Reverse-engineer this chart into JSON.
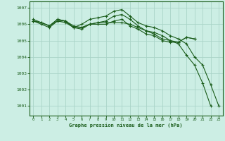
{
  "title": "Graphe pression niveau de la mer (hPa)",
  "background_color": "#cceee4",
  "grid_color": "#aad4c8",
  "line_color": "#1a5c1a",
  "xlim": [
    -0.5,
    23.5
  ],
  "ylim": [
    1000.4,
    1007.4
  ],
  "yticks": [
    1001,
    1002,
    1003,
    1004,
    1005,
    1006,
    1007
  ],
  "xticks": [
    0,
    1,
    2,
    3,
    4,
    5,
    6,
    7,
    8,
    9,
    10,
    11,
    12,
    13,
    14,
    15,
    16,
    17,
    18,
    19,
    20,
    21,
    22,
    23
  ],
  "series": [
    {
      "x": [
        0,
        1,
        2,
        3,
        4,
        5,
        6,
        7,
        8,
        9,
        10,
        11,
        12,
        13,
        14,
        15,
        16,
        17,
        18,
        19,
        20,
        21,
        22
      ],
      "y": [
        1006.2,
        1006.1,
        1005.9,
        1006.3,
        1006.2,
        1005.9,
        1005.8,
        1006.0,
        1006.1,
        1006.1,
        1006.1,
        1006.1,
        1006.0,
        1005.8,
        1005.6,
        1005.5,
        1005.3,
        1005.0,
        1004.8,
        1004.1,
        1003.5,
        1002.4,
        1001.0
      ]
    },
    {
      "x": [
        0,
        1,
        2,
        3,
        4,
        5,
        6,
        7,
        8,
        9,
        10,
        11,
        12,
        13,
        14,
        15,
        16,
        17,
        18,
        19,
        20,
        21,
        22,
        23
      ],
      "y": [
        1006.2,
        1006.0,
        1005.8,
        1006.2,
        1006.1,
        1005.8,
        1006.0,
        1006.3,
        1006.4,
        1006.5,
        1006.8,
        1006.9,
        1006.5,
        1006.1,
        1005.9,
        1005.8,
        1005.6,
        1005.3,
        1005.1,
        1004.8,
        1004.0,
        1003.5,
        1002.3,
        1001.0
      ]
    },
    {
      "x": [
        0,
        2,
        3,
        4,
        5,
        6,
        7,
        8,
        9,
        10,
        11,
        12,
        13,
        14,
        15,
        16,
        17,
        18,
        19,
        20
      ],
      "y": [
        1006.3,
        1005.9,
        1006.3,
        1006.2,
        1005.8,
        1005.7,
        1006.0,
        1006.1,
        1006.2,
        1006.5,
        1006.6,
        1006.3,
        1005.9,
        1005.6,
        1005.4,
        1005.1,
        1005.0,
        1004.9,
        1005.2,
        1005.1
      ]
    },
    {
      "x": [
        0,
        1,
        2,
        3,
        4,
        5,
        6,
        7,
        8,
        9,
        10,
        11,
        12,
        13,
        14,
        15,
        16,
        17,
        18,
        19,
        20
      ],
      "y": [
        1006.2,
        1006.1,
        1005.9,
        1006.2,
        1006.2,
        1005.8,
        1005.8,
        1006.0,
        1006.0,
        1006.0,
        1006.2,
        1006.3,
        1005.9,
        1005.7,
        1005.4,
        1005.3,
        1005.0,
        1004.9,
        1004.9,
        1005.2,
        1005.1
      ]
    }
  ]
}
